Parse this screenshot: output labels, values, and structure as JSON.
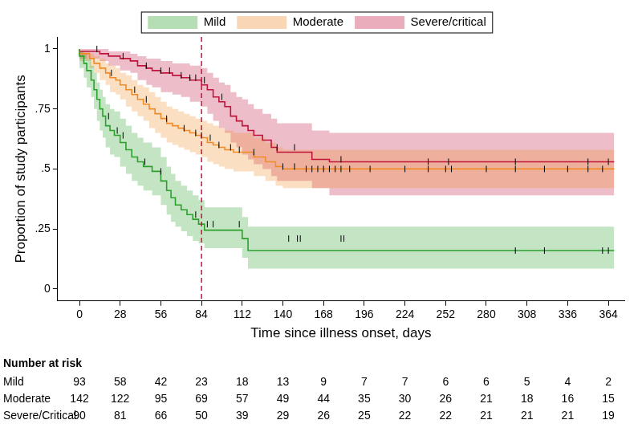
{
  "chart_data": {
    "type": "line",
    "line_style": "step",
    "x_label": "Time since illness onset, days",
    "y_label": "Proportion of study participants",
    "xlim": [
      -15,
      375
    ],
    "xticks": [
      0,
      28,
      56,
      84,
      112,
      140,
      168,
      196,
      224,
      252,
      280,
      308,
      336,
      364
    ],
    "ylim": [
      -0.05,
      1.05
    ],
    "yticks": [
      0,
      {
        "value": 0.25,
        "label": ".25"
      },
      {
        "value": 0.5,
        "label": ".5"
      },
      {
        "value": 0.75,
        "label": ".75"
      },
      1
    ],
    "grid": false,
    "legend": "top",
    "vline_x": 84,
    "series": [
      {
        "name": "Mild",
        "color": "#2ca02c",
        "x": [
          0,
          3,
          5,
          8,
          10,
          12,
          14,
          16,
          18,
          21,
          24,
          28,
          32,
          36,
          40,
          44,
          50,
          56,
          60,
          63,
          66,
          70,
          74,
          78,
          82,
          86,
          112,
          116,
          224,
          368
        ],
        "values": [
          1,
          0.97,
          0.94,
          0.91,
          0.87,
          0.83,
          0.79,
          0.75,
          0.72,
          0.68,
          0.66,
          0.64,
          0.61,
          0.58,
          0.55,
          0.53,
          0.51,
          0.49,
          0.45,
          0.41,
          0.38,
          0.35,
          0.33,
          0.31,
          0.29,
          0.27,
          0.245,
          0.21,
          0.16,
          0.16
        ],
        "lower": [
          1,
          0.92,
          0.88,
          0.84,
          0.8,
          0.75,
          0.7,
          0.66,
          0.63,
          0.59,
          0.56,
          0.55,
          0.51,
          0.48,
          0.45,
          0.43,
          0.41,
          0.39,
          0.35,
          0.31,
          0.28,
          0.26,
          0.24,
          0.22,
          0.2,
          0.19,
          0.17,
          0.13,
          0.085,
          0.085
        ],
        "upper": [
          1,
          0.99,
          0.98,
          0.96,
          0.93,
          0.9,
          0.86,
          0.83,
          0.8,
          0.77,
          0.75,
          0.74,
          0.71,
          0.68,
          0.65,
          0.63,
          0.61,
          0.59,
          0.55,
          0.51,
          0.48,
          0.45,
          0.43,
          0.41,
          0.39,
          0.37,
          0.34,
          0.3,
          0.26,
          0.26
        ],
        "censored": [
          20,
          26,
          30,
          45,
          56,
          80,
          88,
          92,
          110,
          144,
          150,
          152,
          180,
          182,
          300,
          320,
          360,
          364
        ]
      },
      {
        "name": "Moderate",
        "color": "#f08c28",
        "x": [
          0,
          7,
          10,
          14,
          18,
          21,
          25,
          28,
          32,
          36,
          40,
          44,
          48,
          52,
          56,
          60,
          64,
          68,
          72,
          76,
          80,
          84,
          88,
          92,
          96,
          100,
          106,
          120,
          128,
          135,
          140,
          155,
          368
        ],
        "values": [
          1,
          0.98,
          0.96,
          0.94,
          0.92,
          0.9,
          0.88,
          0.87,
          0.85,
          0.83,
          0.81,
          0.79,
          0.77,
          0.75,
          0.73,
          0.71,
          0.69,
          0.68,
          0.67,
          0.66,
          0.65,
          0.64,
          0.63,
          0.61,
          0.6,
          0.59,
          0.58,
          0.57,
          0.55,
          0.53,
          0.51,
          0.5,
          0.5
        ],
        "lower": [
          1,
          0.95,
          0.92,
          0.9,
          0.87,
          0.85,
          0.82,
          0.81,
          0.79,
          0.76,
          0.74,
          0.72,
          0.7,
          0.67,
          0.65,
          0.63,
          0.61,
          0.6,
          0.59,
          0.58,
          0.57,
          0.56,
          0.55,
          0.53,
          0.52,
          0.51,
          0.5,
          0.49,
          0.47,
          0.45,
          0.43,
          0.42,
          0.42
        ],
        "upper": [
          1,
          0.99,
          0.98,
          0.97,
          0.96,
          0.94,
          0.93,
          0.92,
          0.9,
          0.89,
          0.87,
          0.85,
          0.84,
          0.82,
          0.8,
          0.78,
          0.76,
          0.75,
          0.74,
          0.73,
          0.72,
          0.71,
          0.7,
          0.69,
          0.68,
          0.67,
          0.66,
          0.65,
          0.63,
          0.61,
          0.59,
          0.58,
          0.58
        ],
        "censored": [
          22,
          38,
          46,
          60,
          72,
          80,
          84,
          90,
          96,
          104,
          110,
          120,
          140,
          148,
          156,
          160,
          164,
          168,
          172,
          176,
          180,
          186,
          200,
          224,
          240,
          252,
          256,
          280,
          300,
          320,
          336,
          350,
          360
        ]
      },
      {
        "name": "Severe/critical",
        "color": "#c0143c",
        "x": [
          0,
          14,
          20,
          28,
          35,
          40,
          46,
          50,
          56,
          64,
          70,
          76,
          84,
          88,
          92,
          96,
          100,
          104,
          108,
          112,
          116,
          120,
          126,
          132,
          136,
          160,
          172,
          200,
          368
        ],
        "values": [
          1,
          0.99,
          0.98,
          0.97,
          0.96,
          0.95,
          0.93,
          0.92,
          0.91,
          0.9,
          0.89,
          0.88,
          0.87,
          0.85,
          0.83,
          0.8,
          0.78,
          0.76,
          0.72,
          0.7,
          0.68,
          0.66,
          0.64,
          0.62,
          0.59,
          0.57,
          0.54,
          0.53,
          0.53
        ],
        "lower": [
          1,
          0.96,
          0.95,
          0.93,
          0.91,
          0.9,
          0.87,
          0.85,
          0.84,
          0.82,
          0.81,
          0.8,
          0.78,
          0.76,
          0.73,
          0.7,
          0.67,
          0.65,
          0.61,
          0.59,
          0.56,
          0.54,
          0.52,
          0.5,
          0.47,
          0.45,
          0.42,
          0.39,
          0.39
        ],
        "upper": [
          1,
          1,
          1,
          0.99,
          0.99,
          0.98,
          0.97,
          0.96,
          0.96,
          0.95,
          0.94,
          0.94,
          0.93,
          0.92,
          0.9,
          0.88,
          0.86,
          0.85,
          0.82,
          0.8,
          0.79,
          0.77,
          0.75,
          0.73,
          0.71,
          0.69,
          0.66,
          0.65,
          0.65
        ],
        "censored": [
          12,
          30,
          46,
          56,
          62,
          70,
          76,
          80,
          86,
          98,
          136,
          148,
          180,
          240,
          254,
          300,
          350,
          364
        ]
      }
    ],
    "risk_table": {
      "title": "Number at risk",
      "rows": [
        {
          "name": "Mild",
          "values": [
            93,
            58,
            42,
            23,
            18,
            13,
            9,
            7,
            7,
            6,
            6,
            5,
            4,
            2
          ]
        },
        {
          "name": "Moderate",
          "values": [
            142,
            122,
            95,
            69,
            57,
            49,
            44,
            35,
            30,
            26,
            21,
            18,
            16,
            15
          ]
        },
        {
          "name": "Severe/Critical",
          "values": [
            90,
            81,
            66,
            50,
            39,
            29,
            26,
            25,
            22,
            22,
            21,
            21,
            21,
            19
          ]
        }
      ]
    }
  }
}
